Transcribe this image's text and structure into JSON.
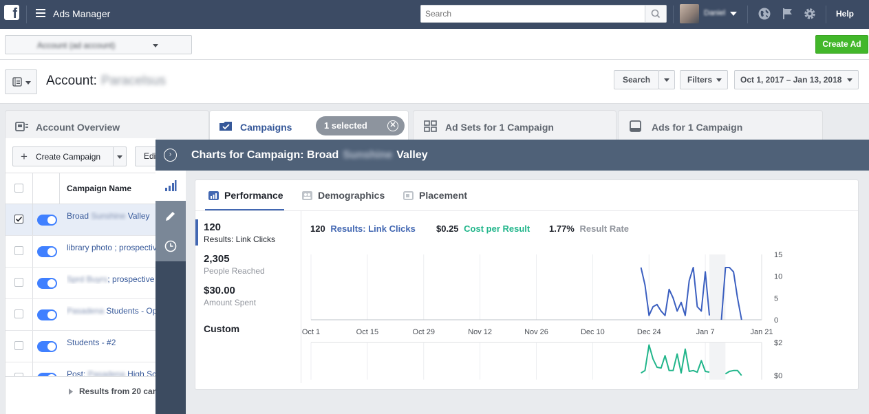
{
  "topbar": {
    "logo": "f",
    "app_title": "Ads Manager",
    "search_placeholder": "Search",
    "user_name": "Daniel",
    "help": "Help"
  },
  "account_bar": {
    "account_select_value": "Account (ad account)",
    "create_ad": "Create Ad"
  },
  "header": {
    "account_label": "Account:",
    "account_name": "Paracelsus",
    "search_btn": "Search",
    "filters_btn": "Filters",
    "date_range": "Oct 1, 2017 – Jan 13, 2018"
  },
  "tabs": [
    {
      "label": "Account Overview"
    },
    {
      "label": "Campaigns"
    },
    {
      "label": "Ad Sets for 1 Campaign"
    },
    {
      "label": "Ads for 1 Campaign"
    }
  ],
  "selected_pill": "1 selected",
  "table": {
    "create_campaign": "Create Campaign",
    "edit": "Edi",
    "col_name": "Campaign Name",
    "rows": [
      {
        "pre": "Broad ",
        "blur": "Sunshine",
        "post": " Valley"
      },
      {
        "pre": "library photo ; prospective",
        "blur": "",
        "post": ""
      },
      {
        "pre": "",
        "blur": "Sprd Buyrs",
        "post": "; prospective"
      },
      {
        "pre": "",
        "blur": "Pasadena",
        "post": " Students - Ope"
      },
      {
        "pre": "Students - #2",
        "blur": "",
        "post": ""
      },
      {
        "pre": "Post: ",
        "blur": "Pasadena",
        "post": " High Sc"
      }
    ],
    "footer": "Results from 20 cam"
  },
  "panel": {
    "title_pre": "Charts for Campaign: Broad",
    "title_blur": "Sunshine",
    "title_post": "Valley",
    "subtabs": [
      "Performance",
      "Demographics",
      "Placement"
    ],
    "metrics": [
      {
        "value": "120",
        "label": "Results: Link Clicks"
      },
      {
        "value": "2,305",
        "label": "People Reached"
      },
      {
        "value": "$30.00",
        "label": "Amount Spent"
      }
    ],
    "custom": "Custom",
    "legend": {
      "results_value": "120",
      "results_label": "Results: Link Clicks",
      "cost_value": "$0.25",
      "cost_label": "Cost per Result",
      "rate_value": "1.77%",
      "rate_label": "Result Rate"
    }
  },
  "chart_data": {
    "type": "line",
    "x_ticks": [
      "Oct 1",
      "Oct 15",
      "Oct 29",
      "Nov 12",
      "Nov 26",
      "Dec 10",
      "Dec 24",
      "Jan 7",
      "Jan 21"
    ],
    "y_ticks_top": [
      "15",
      "10",
      "5",
      "0"
    ],
    "y_ticks_bottom": [
      "$2.00",
      "$0.00"
    ],
    "ylim_top": [
      0,
      15
    ],
    "ylim_bottom": [
      0,
      2
    ],
    "series": [
      {
        "name": "Results: Link Clicks",
        "color": "#3b5fc0",
        "points": [
          [
            82,
            12
          ],
          [
            83,
            8
          ],
          [
            84,
            1
          ],
          [
            85,
            3
          ],
          [
            86,
            3.5
          ],
          [
            87,
            2
          ],
          [
            88,
            1
          ],
          [
            89,
            7
          ],
          [
            90,
            5
          ],
          [
            91,
            2
          ],
          [
            92,
            4
          ],
          [
            93,
            1
          ],
          [
            94,
            9
          ],
          [
            95,
            12
          ],
          [
            96,
            3
          ],
          [
            97,
            2
          ],
          [
            98,
            11
          ],
          [
            99,
            1
          ],
          [
            102,
            0
          ],
          [
            103,
            12
          ],
          [
            104,
            12
          ],
          [
            105,
            11
          ],
          [
            106,
            5
          ],
          [
            107,
            0
          ]
        ]
      },
      {
        "name": "Cost per Result",
        "color": "#20b58a",
        "points": [
          [
            82,
            0.15
          ],
          [
            83,
            0.3
          ],
          [
            84,
            1.85
          ],
          [
            85,
            1.0
          ],
          [
            86,
            0.5
          ],
          [
            87,
            0.45
          ],
          [
            88,
            1.2
          ],
          [
            89,
            0.3
          ],
          [
            90,
            0.3
          ],
          [
            91,
            1.3
          ],
          [
            92,
            0.15
          ],
          [
            93,
            1.6
          ],
          [
            94,
            0.25
          ],
          [
            95,
            0.3
          ],
          [
            96,
            0.2
          ],
          [
            97,
            0.9
          ],
          [
            98,
            0.25
          ],
          [
            99,
            0.2
          ],
          [
            103,
            0.1
          ],
          [
            104,
            0.25
          ],
          [
            105,
            0.3
          ],
          [
            106,
            0.3
          ],
          [
            107,
            0
          ]
        ]
      }
    ],
    "colors": {
      "accent": "#4267b2",
      "cost": "#20b58a",
      "rate": "#90949c"
    }
  }
}
